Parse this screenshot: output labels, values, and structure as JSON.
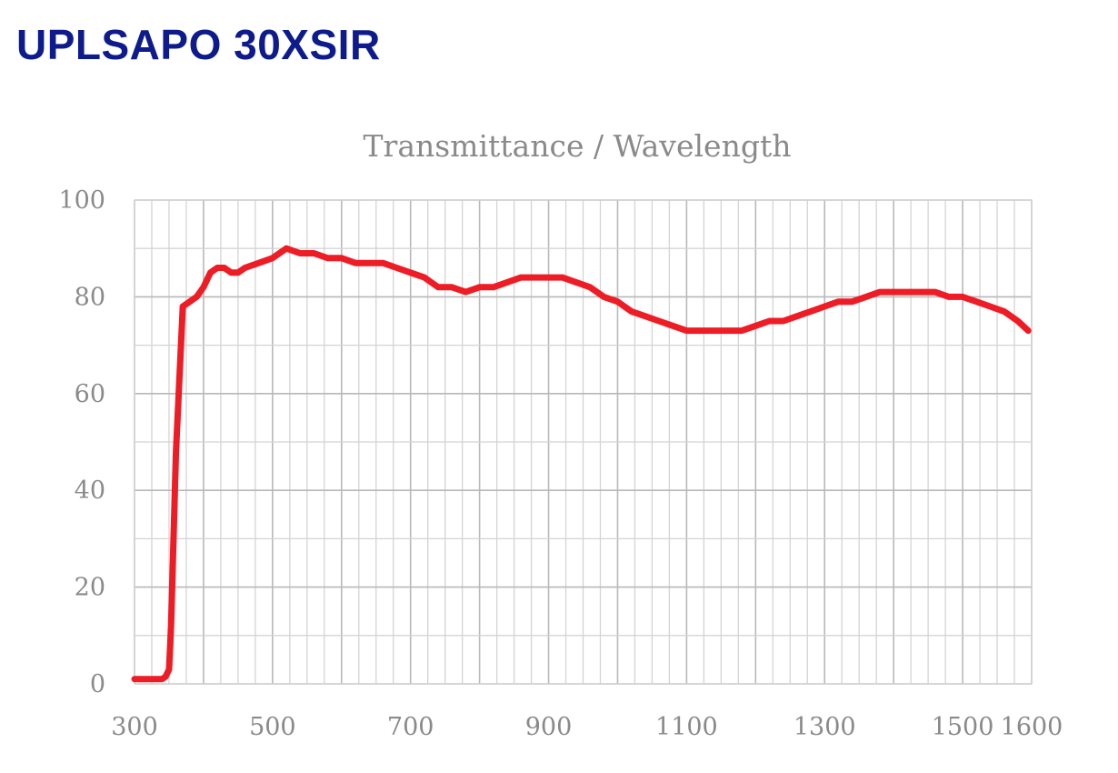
{
  "page": {
    "title": "UPLSAPO 30XSIR"
  },
  "chart_data": {
    "type": "line",
    "title": "Transmittance / Wavelength",
    "xlabel": "",
    "ylabel": "",
    "xlim": [
      300,
      1600
    ],
    "ylim": [
      0,
      100
    ],
    "x_ticks": [
      "300",
      "500",
      "700",
      "900",
      "1100",
      "1300",
      "1500",
      "1600"
    ],
    "y_ticks": [
      "100",
      "80",
      "60",
      "40",
      "20",
      "0"
    ],
    "grid": true,
    "line_color": "#ee1c25",
    "series": [
      {
        "x": [
          300,
          310,
          340,
          345,
          350,
          353,
          360,
          370,
          380,
          390,
          400,
          410,
          420,
          430,
          440,
          450,
          460,
          480,
          500,
          520,
          540,
          560,
          580,
          600,
          620,
          640,
          660,
          680,
          700,
          720,
          740,
          760,
          780,
          800,
          820,
          840,
          860,
          880,
          900,
          920,
          940,
          960,
          980,
          1000,
          1020,
          1040,
          1060,
          1080,
          1100,
          1120,
          1140,
          1160,
          1180,
          1200,
          1220,
          1240,
          1260,
          1280,
          1300,
          1320,
          1340,
          1360,
          1380,
          1400,
          1420,
          1440,
          1460,
          1480,
          1500,
          1520,
          1540,
          1560,
          1580,
          1595
        ],
        "y": [
          1,
          1,
          1,
          1.5,
          3,
          12,
          48,
          78,
          79,
          80,
          82,
          85,
          86,
          86,
          85,
          85,
          86,
          87,
          88,
          90,
          89,
          89,
          88,
          88,
          87,
          87,
          87,
          86,
          85,
          84,
          82,
          82,
          81,
          82,
          82,
          83,
          84,
          84,
          84,
          84,
          83,
          82,
          80,
          79,
          77,
          76,
          75,
          74,
          73,
          73,
          73,
          73,
          73,
          74,
          75,
          75,
          76,
          77,
          78,
          79,
          79,
          80,
          81,
          81,
          81,
          81,
          81,
          80,
          80,
          79,
          78,
          77,
          75,
          73
        ]
      }
    ]
  }
}
